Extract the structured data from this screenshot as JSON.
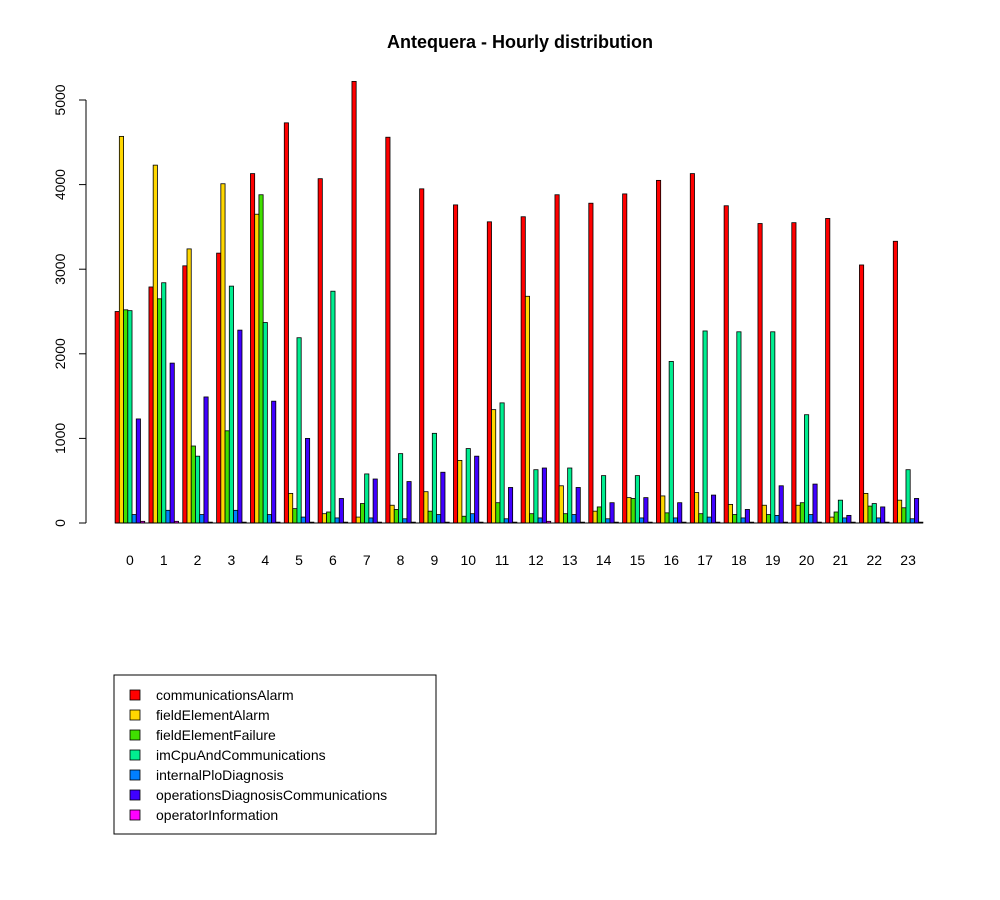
{
  "chart_data": {
    "type": "bar",
    "title": "Antequera - Hourly distribution",
    "xlabel": "",
    "ylabel": "",
    "ylim": [
      0,
      5300
    ],
    "y_ticks": [
      0,
      1000,
      2000,
      3000,
      4000,
      5000
    ],
    "y_tick_labels": [
      "0",
      "1000",
      "2000",
      "3000",
      "4000",
      "5000"
    ],
    "categories": [
      "0",
      "1",
      "2",
      "3",
      "4",
      "5",
      "6",
      "7",
      "8",
      "9",
      "10",
      "11",
      "12",
      "13",
      "14",
      "15",
      "16",
      "17",
      "18",
      "19",
      "20",
      "21",
      "22",
      "23"
    ],
    "grid": false,
    "legend_placement": "bottom-left",
    "series": [
      {
        "name": "communicationsAlarm",
        "color": "#ff0000",
        "values": [
          2500,
          2790,
          3040,
          3190,
          4130,
          4730,
          4070,
          5220,
          4560,
          3950,
          3760,
          3560,
          3620,
          3880,
          3780,
          3890,
          4050,
          4130,
          3750,
          3540,
          3550,
          3600,
          3050,
          3330
        ]
      },
      {
        "name": "fieldElementAlarm",
        "color": "#ffd700",
        "values": [
          4570,
          4230,
          3240,
          4010,
          3650,
          350,
          110,
          70,
          210,
          370,
          740,
          1340,
          2680,
          440,
          140,
          300,
          320,
          360,
          220,
          210,
          210,
          70,
          350,
          270
        ]
      },
      {
        "name": "fieldElementFailure",
        "color": "#40e000",
        "values": [
          2520,
          2650,
          910,
          1090,
          3880,
          170,
          130,
          230,
          160,
          140,
          80,
          240,
          110,
          110,
          190,
          290,
          120,
          110,
          100,
          100,
          240,
          130,
          200,
          180
        ]
      },
      {
        "name": "imCpuAndCommunications",
        "color": "#00ee90",
        "values": [
          2510,
          2840,
          790,
          2800,
          2370,
          2190,
          2740,
          580,
          820,
          1060,
          880,
          1420,
          630,
          650,
          560,
          560,
          1910,
          2270,
          2260,
          2260,
          1280,
          270,
          230,
          630
        ]
      },
      {
        "name": "internalPloDiagnosis",
        "color": "#0080ff",
        "values": [
          100,
          150,
          100,
          150,
          100,
          70,
          60,
          60,
          50,
          100,
          110,
          50,
          60,
          100,
          50,
          60,
          60,
          70,
          60,
          90,
          100,
          60,
          60,
          50
        ]
      },
      {
        "name": "operationsDiagnosisCommunications",
        "color": "#4000ff",
        "values": [
          1230,
          1890,
          1490,
          2280,
          1440,
          1000,
          290,
          520,
          490,
          600,
          790,
          420,
          650,
          420,
          240,
          300,
          240,
          330,
          160,
          440,
          460,
          90,
          190,
          290
        ]
      },
      {
        "name": "operatorInformation",
        "color": "#ff00ff",
        "values": [
          20,
          20,
          10,
          10,
          10,
          10,
          10,
          10,
          10,
          10,
          10,
          10,
          20,
          10,
          10,
          10,
          10,
          10,
          10,
          10,
          10,
          10,
          10,
          10
        ]
      }
    ]
  }
}
